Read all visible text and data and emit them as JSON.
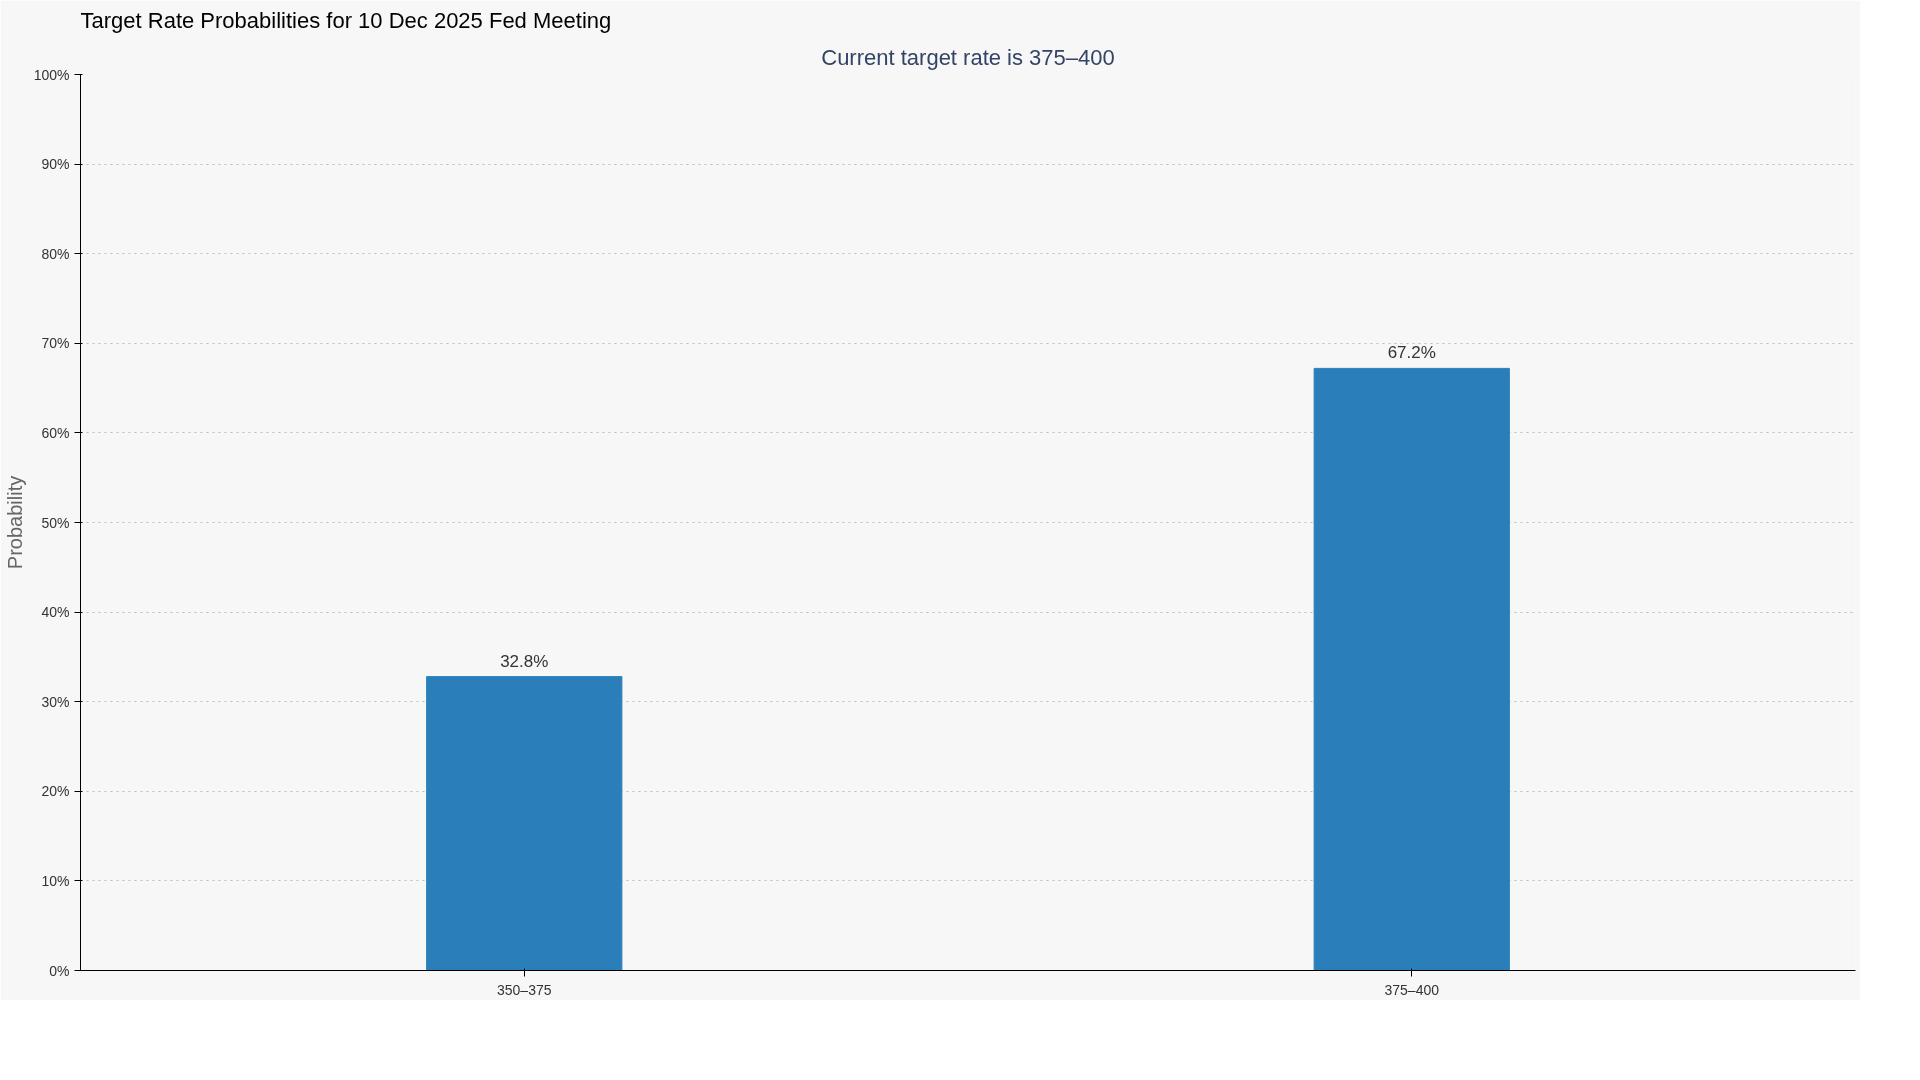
{
  "chart_data": {
    "type": "bar",
    "title": "Target Rate Probabilities for 10 Dec 2025 Fed Meeting",
    "subtitle": "Current target rate is 375–400",
    "ylabel": "Probability",
    "categories": [
      "350–375",
      "375–400"
    ],
    "values": [
      32.8,
      67.2
    ],
    "color": "#2a7fba",
    "value_labels": [
      "32.8%",
      "67.2%"
    ],
    "ylim": [
      0,
      100
    ],
    "yticks": [
      {
        "value": 0,
        "label": "0%"
      },
      {
        "value": 10,
        "label": "10%"
      },
      {
        "value": 20,
        "label": "20%"
      },
      {
        "value": 30,
        "label": "30%"
      },
      {
        "value": 40,
        "label": "40%"
      },
      {
        "value": 50,
        "label": "50%"
      },
      {
        "value": 60,
        "label": "60%"
      },
      {
        "value": 70,
        "label": "70%"
      },
      {
        "value": 80,
        "label": "80%"
      },
      {
        "value": 90,
        "label": "90%"
      },
      {
        "value": 100,
        "label": "100%"
      }
    ],
    "grid": "y"
  }
}
